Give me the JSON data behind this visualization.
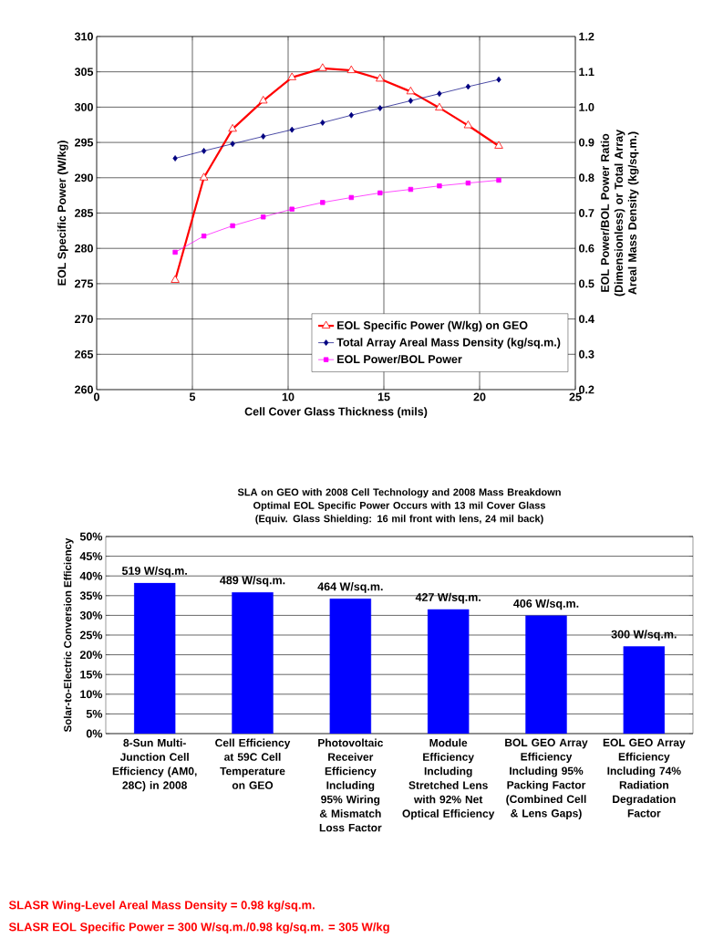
{
  "chart_data": [
    {
      "type": "line",
      "xlabel": "Cell Cover Glass Thickness (mils)",
      "ylabel": "EOL Specific Power (W/kg)",
      "y2label": "EOL Power/BOL Power Ratio (Dimensionless) or Total Array Areal Mass Density (kg/sq.m.)",
      "x": [
        4.1,
        5.6,
        7.1,
        8.7,
        10.2,
        11.8,
        13.3,
        14.8,
        16.4,
        17.9,
        19.4,
        21.0
      ],
      "series": [
        {
          "name": "EOL Specific Power (W/kg) on GEO",
          "color": "#ff0000",
          "marker": "triangle",
          "values": [
            275.5,
            290.0,
            296.9,
            300.9,
            304.2,
            305.5,
            305.2,
            304.0,
            302.2,
            299.9,
            297.4,
            294.5
          ]
        },
        {
          "name": "Total Array Areal Mass Density (kg/sq.m.)",
          "color": "#000080",
          "marker": "diamond",
          "axis": "y2",
          "values": [
            0.855,
            0.876,
            0.896,
            0.917,
            0.936,
            0.956,
            0.977,
            0.997,
            1.018,
            1.038,
            1.058,
            1.078
          ]
        },
        {
          "name": "EOL Power/BOL Power",
          "color": "#ff00ff",
          "marker": "square",
          "axis": "y2",
          "values": [
            0.589,
            0.635,
            0.664,
            0.689,
            0.711,
            0.73,
            0.744,
            0.757,
            0.767,
            0.777,
            0.785,
            0.793
          ]
        }
      ],
      "xlim": [
        0,
        25
      ],
      "xticks": [
        0,
        5,
        10,
        15,
        20,
        25
      ],
      "ylim": [
        260,
        310
      ],
      "yticks": [
        260,
        265,
        270,
        275,
        280,
        285,
        290,
        295,
        300,
        305,
        310
      ],
      "y2lim": [
        0.2,
        1.2
      ],
      "y2ticks": [
        {
          "value": 0.2,
          "label": "0.2"
        },
        {
          "value": 0.3,
          "label": "0.3"
        },
        {
          "value": 0.4,
          "label": "0.4"
        },
        {
          "value": 0.5,
          "label": "0.5"
        },
        {
          "value": 0.6,
          "label": "0.6"
        },
        {
          "value": 0.7,
          "label": "0.7"
        },
        {
          "value": 0.8,
          "label": "0.8"
        },
        {
          "value": 0.9,
          "label": "0.9"
        },
        {
          "value": 1.0,
          "label": "1.0"
        },
        {
          "value": 1.1,
          "label": "1.1"
        },
        {
          "value": 1.2,
          "label": "1.2"
        }
      ],
      "grid": true,
      "legend": "bottom right"
    },
    {
      "type": "bar",
      "title": "SLA on GEO with 2008 Cell Technology and 2008 Mass Breakdown",
      "subtitle": "Optimal EOL Specific Power Occurs with 13 mil Cover Glass (Equiv. Glass Shielding:  16 mil front with lens, 24 mil back)",
      "ylabel": "Solar-to-Electric Conversion Efficiency",
      "categories": [
        "8-Sun Multi-Junction Cell Efficiency (AM0, 28C) in 2008",
        "Cell Efficiency at 59C Cell Temperature on GEO",
        "Photovoltaic Receiver Efficiency Including 95% Wiring & Mismatch Loss Factor",
        "Module Efficiency Including Stretched Lens with 92% Net Optical Efficiency",
        "BOL GEO Array Efficiency Including 95% Packing Factor (Combined Cell & Lens Gaps)",
        "EOL GEO Array Efficiency Including 74% Radiation Degradation Factor"
      ],
      "values": [
        38.2,
        35.8,
        34.2,
        31.5,
        29.9,
        22.1
      ],
      "color": "#0000ff",
      "ylim": [
        0,
        50
      ],
      "yticks": [
        {
          "value": 0,
          "label": "0%"
        },
        {
          "value": 5,
          "label": "5%"
        },
        {
          "value": 10,
          "label": "10%"
        },
        {
          "value": 15,
          "label": "15%"
        },
        {
          "value": 20,
          "label": "20%"
        },
        {
          "value": 25,
          "label": "25%"
        },
        {
          "value": 30,
          "label": "30%"
        },
        {
          "value": 35,
          "label": "35%"
        },
        {
          "value": 40,
          "label": "40%"
        },
        {
          "value": 45,
          "label": "45%"
        },
        {
          "value": 50,
          "label": "50%"
        }
      ],
      "grid": "y",
      "annotations": [
        {
          "text": "519 W/sq.m.",
          "x": "8-Sun Multi-Junction Cell Efficiency (AM0, 28C) in 2008",
          "y": 38.2
        },
        {
          "text": "489 W/sq.m.",
          "x": "Cell Efficiency at 59C Cell Temperature on GEO",
          "y": 35.8
        },
        {
          "text": "464 W/sq.m.",
          "x": "Photovoltaic Receiver Efficiency Including 95% Wiring & Mismatch Loss Factor",
          "y": 34.2
        },
        {
          "text": "427 W/sq.m.",
          "x": "Module Efficiency Including Stretched Lens with 92% Net Optical Efficiency",
          "y": 31.5
        },
        {
          "text": "406 W/sq.m.",
          "x": "BOL GEO Array Efficiency Including 95% Packing Factor (Combined Cell & Lens Gaps)",
          "y": 29.9
        },
        {
          "text": "300 W/sq.m.",
          "x": "EOL GEO Array Efficiency Including 74% Radiation Degradation Factor",
          "y": 22.1
        },
        "SLASR Wing-Level Areal Mass Density = 0.98 kg/sq.m.",
        "SLASR EOL Specific Power = 300 W/sq.m./0.98 kg/sq.m. = 305 W/kg"
      ]
    }
  ]
}
